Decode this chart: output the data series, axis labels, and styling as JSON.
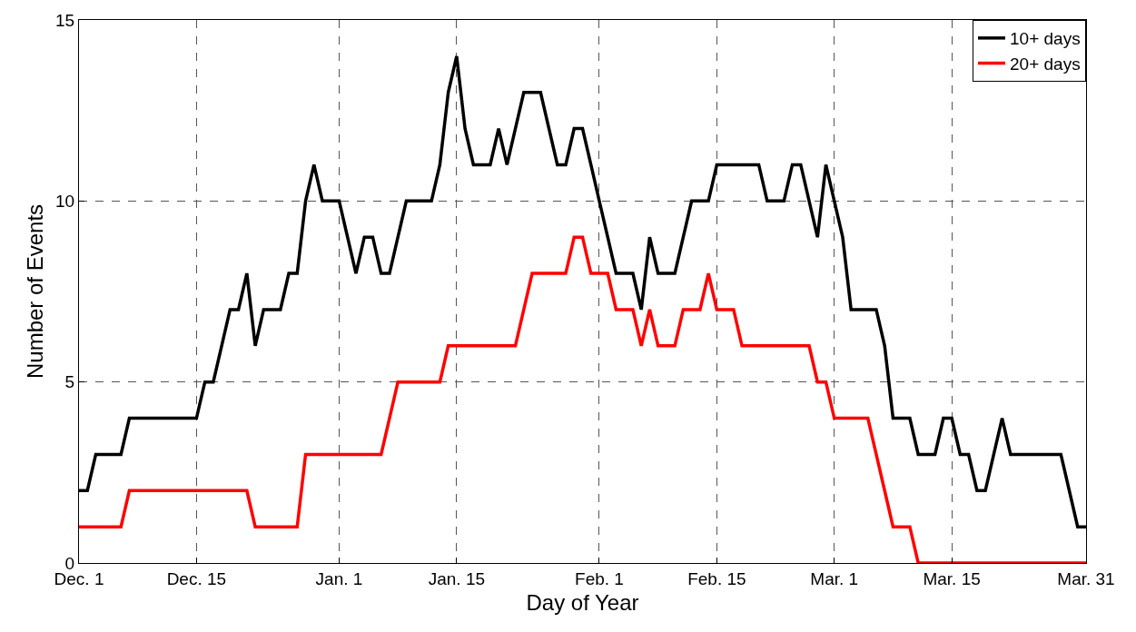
{
  "chart_data": {
    "type": "line",
    "xlabel": "Day of Year",
    "ylabel": "Number of Events",
    "categories": [
      "Dec. 1",
      null,
      null,
      null,
      null,
      null,
      null,
      null,
      null,
      null,
      null,
      null,
      null,
      null,
      "Dec. 15",
      null,
      null,
      null,
      null,
      null,
      null,
      null,
      null,
      null,
      null,
      null,
      null,
      null,
      null,
      null,
      null,
      "Jan. 1",
      null,
      null,
      null,
      null,
      null,
      null,
      null,
      null,
      null,
      null,
      null,
      null,
      null,
      "Jan. 15",
      null,
      null,
      null,
      null,
      null,
      null,
      null,
      null,
      null,
      null,
      null,
      null,
      null,
      null,
      null,
      null,
      "Feb. 1",
      null,
      null,
      null,
      null,
      null,
      null,
      null,
      null,
      null,
      null,
      null,
      null,
      null,
      "Feb. 15",
      null,
      null,
      null,
      null,
      null,
      null,
      null,
      null,
      null,
      null,
      null,
      null,
      null,
      "Mar. 1",
      null,
      null,
      null,
      null,
      null,
      null,
      null,
      null,
      null,
      null,
      null,
      null,
      null,
      "Mar. 15",
      null,
      null,
      null,
      null,
      null,
      null,
      null,
      null,
      null,
      null,
      null,
      null,
      null,
      null,
      null,
      "Mar. 31"
    ],
    "ylim": [
      0,
      15
    ],
    "yticks": [
      0,
      5,
      10,
      15
    ],
    "grid": true,
    "legend": "top right",
    "line_style": "solid",
    "marker": "none",
    "series": [
      {
        "name": "10+ days",
        "color": "#000000",
        "values": [
          2,
          2,
          3,
          3,
          3,
          3,
          4,
          4,
          4,
          4,
          4,
          4,
          4,
          4,
          4,
          5,
          5,
          6,
          7,
          7,
          8,
          6,
          7,
          7,
          7,
          8,
          8,
          10,
          11,
          10,
          10,
          10,
          9,
          8,
          9,
          9,
          8,
          8,
          9,
          10,
          10,
          10,
          10,
          11,
          13,
          14,
          12,
          11,
          11,
          11,
          12,
          11,
          12,
          13,
          13,
          13,
          12,
          11,
          11,
          12,
          12,
          11,
          10,
          9,
          8,
          8,
          8,
          7,
          9,
          8,
          8,
          8,
          9,
          10,
          10,
          10,
          11,
          11,
          11,
          11,
          11,
          11,
          10,
          10,
          10,
          11,
          11,
          10,
          9,
          11,
          10,
          9,
          7,
          7,
          7,
          7,
          6,
          4,
          4,
          4,
          3,
          3,
          3,
          4,
          4,
          3,
          3,
          2,
          2,
          3,
          4,
          3,
          3,
          3,
          3,
          3,
          3,
          3,
          2,
          1,
          1
        ]
      },
      {
        "name": "20+ days",
        "color": "#ff0000",
        "values": [
          1,
          1,
          1,
          1,
          1,
          1,
          2,
          2,
          2,
          2,
          2,
          2,
          2,
          2,
          2,
          2,
          2,
          2,
          2,
          2,
          2,
          1,
          1,
          1,
          1,
          1,
          1,
          3,
          3,
          3,
          3,
          3,
          3,
          3,
          3,
          3,
          3,
          4,
          5,
          5,
          5,
          5,
          5,
          5,
          6,
          6,
          6,
          6,
          6,
          6,
          6,
          6,
          6,
          7,
          8,
          8,
          8,
          8,
          8,
          9,
          9,
          8,
          8,
          8,
          7,
          7,
          7,
          6,
          7,
          6,
          6,
          6,
          7,
          7,
          7,
          8,
          7,
          7,
          7,
          6,
          6,
          6,
          6,
          6,
          6,
          6,
          6,
          6,
          5,
          5,
          4,
          4,
          4,
          4,
          4,
          3,
          2,
          1,
          1,
          1,
          0,
          0,
          0,
          0,
          0,
          0,
          0,
          0,
          0,
          0,
          0,
          0,
          0,
          0,
          0,
          0,
          0,
          0,
          0,
          0,
          0
        ]
      }
    ]
  }
}
